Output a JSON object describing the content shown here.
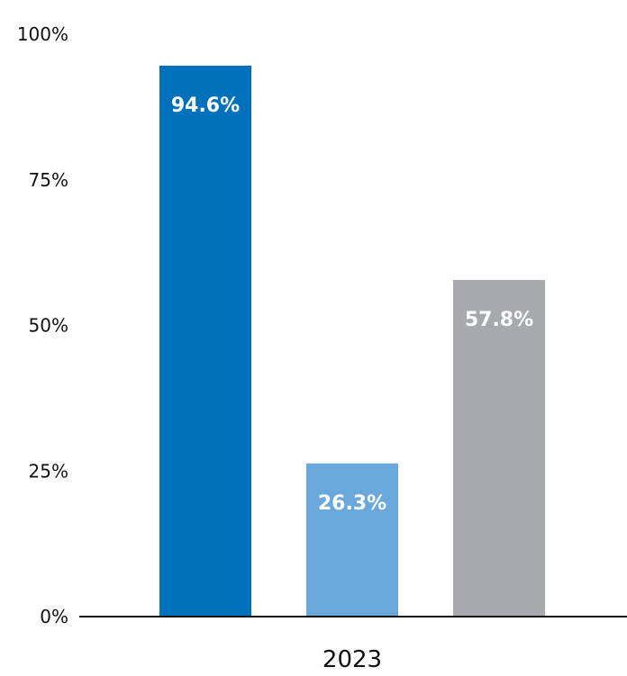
{
  "chart_data": {
    "type": "bar",
    "categories": [
      "2023"
    ],
    "series": [
      {
        "values": [
          94.6
        ],
        "color": "#0271BB",
        "label": "94.6%"
      },
      {
        "values": [
          26.3
        ],
        "color": "#6AA8DB",
        "label": "26.3%"
      },
      {
        "values": [
          57.8
        ],
        "color": "#A7A9AC",
        "label": "57.8%"
      }
    ],
    "yticks": [
      0,
      25,
      50,
      75,
      100
    ],
    "ytick_labels": [
      "0%",
      "25%",
      "50%",
      "75%",
      "100%"
    ],
    "ylim": [
      0,
      100
    ],
    "xlabel": "2023",
    "ylabel": "",
    "title": "",
    "grid": false,
    "legend": "none"
  }
}
